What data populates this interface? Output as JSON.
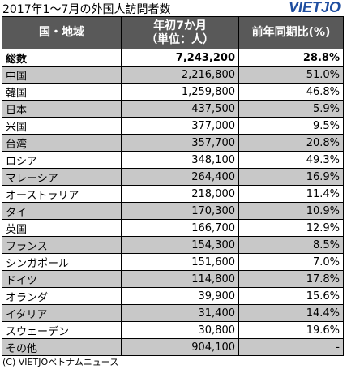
{
  "title": "2017年1～7月の外国人訪問者数",
  "logo": "VIETJO",
  "table": {
    "header": [
      "国・地域",
      [
        "年初7か月",
        "（単位：人）"
      ],
      "前年同期比(%)"
    ],
    "rows": [
      [
        "総数",
        "7,243,200",
        "28.8%"
      ],
      [
        "中国",
        "2,216,800",
        "51.0%"
      ],
      [
        "韓国",
        "1,259,800",
        "46.8%"
      ],
      [
        "日本",
        "437,500",
        "5.9%"
      ],
      [
        "米国",
        "377,000",
        "9.5%"
      ],
      [
        "台湾",
        "357,700",
        "20.8%"
      ],
      [
        "ロシア",
        "348,100",
        "49.3%"
      ],
      [
        "マレーシア",
        "264,400",
        "16.9%"
      ],
      [
        "オーストラリア",
        "218,000",
        "11.4%"
      ],
      [
        "タイ",
        "170,300",
        "10.9%"
      ],
      [
        "英国",
        "166,700",
        "12.9%"
      ],
      [
        "フランス",
        "154,300",
        "8.5%"
      ],
      [
        "シンガポール",
        "151,600",
        "7.0%"
      ],
      [
        "ドイツ",
        "114,800",
        "17.8%"
      ],
      [
        "オランダ",
        "39,900",
        "15.6%"
      ],
      [
        "イタリア",
        "31,400",
        "14.4%"
      ],
      [
        "スウェーデン",
        "30,800",
        "19.6%"
      ],
      [
        "その他",
        "904,100",
        "-"
      ]
    ]
  },
  "footer": "(C) VIETJOベトナムニュース"
}
